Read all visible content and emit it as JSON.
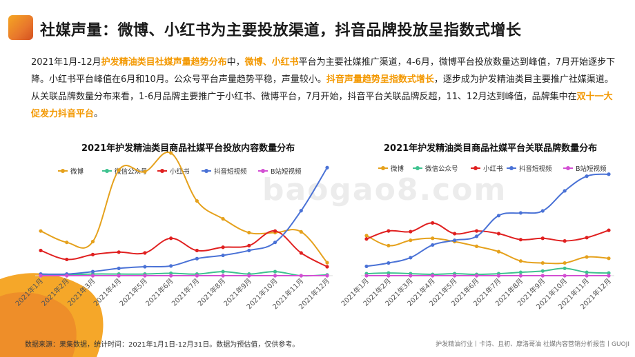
{
  "header": {
    "title": "社媒声量：微博、小红书为主要投放渠道，抖音品牌投放呈指数式增长"
  },
  "description": {
    "p1": "2021年1月-12月",
    "h1": "护发精油类目社媒声量趋势分布",
    "p2": "中，",
    "h2": "微博、小红书",
    "p3": "平台为主要社媒推广渠道，4-6月，微博平台投放数量达到峰值，7月开始逐步下降。小红书平台峰值在6月和10月。公众号平台声量趋势平稳，声量较小。",
    "h3": "抖音声量趋势呈指数式增长",
    "p4": "，逐步成为护发精油类目主要推广社媒渠道。从关联品牌数量分布来看，1-6月品牌主要推广于小红书、微博平台，7月开始，抖音平台关联品牌反超，11、12月达到峰值，品牌集中在",
    "h4": "双十一大促发力抖音平台",
    "p5": "。"
  },
  "watermark": "baogao8.com",
  "chart_data": [
    {
      "type": "line",
      "title": "2021年护发精油类目商品社媒平台投放内容数量分布",
      "categories": [
        "2021年1月",
        "2021年2月",
        "2021年3月",
        "2021年4月",
        "2021年5月",
        "2021年6月",
        "2021年7月",
        "2021年8月",
        "2021年9月",
        "2021年10月",
        "2021年11月",
        "2021年12月"
      ],
      "ylim": [
        0,
        140
      ],
      "series": [
        {
          "name": "微博",
          "color": "#e5a11c",
          "values": [
            55,
            41,
            42,
            130,
            128,
            151,
            92,
            70,
            53,
            53,
            54,
            16
          ]
        },
        {
          "name": "微信公众号",
          "color": "#3ec28f",
          "values": [
            1,
            1,
            2,
            2,
            2,
            3,
            2,
            5,
            2,
            5,
            0,
            1
          ]
        },
        {
          "name": "小红书",
          "color": "#e02020",
          "values": [
            31,
            20,
            26,
            29,
            28,
            46,
            31,
            35,
            37,
            55,
            28,
            11
          ]
        },
        {
          "name": "抖音短视频",
          "color": "#4a72d6",
          "values": [
            2,
            2,
            5,
            9,
            11,
            12,
            21,
            25,
            31,
            41,
            80,
            133
          ]
        },
        {
          "name": "B站短视频",
          "color": "#d34fd3",
          "values": [
            0,
            0,
            0,
            0,
            0,
            0,
            0,
            0,
            0,
            0,
            0,
            0
          ]
        }
      ]
    },
    {
      "type": "line",
      "title": "2021年护发精油类目商品社媒平台关联品牌数量分布",
      "categories": [
        "2021年1月",
        "2021年2月",
        "2021年3月",
        "2021年4月",
        "2021年5月",
        "2021年6月",
        "2021年7月",
        "2021年8月",
        "2021年9月",
        "2021年10月",
        "2021年11月",
        "2021年12月"
      ],
      "ylim": [
        0,
        160
      ],
      "series": [
        {
          "name": "微博",
          "color": "#e5a11c",
          "values": [
            60,
            45,
            53,
            56,
            51,
            44,
            36,
            22,
            19,
            19,
            28,
            26
          ]
        },
        {
          "name": "微信公众号",
          "color": "#3ec28f",
          "values": [
            3,
            4,
            3,
            2,
            3,
            2,
            3,
            5,
            7,
            11,
            5,
            4
          ]
        },
        {
          "name": "小红书",
          "color": "#e02020",
          "values": [
            55,
            67,
            66,
            79,
            63,
            67,
            63,
            54,
            56,
            52,
            57,
            68
          ]
        },
        {
          "name": "抖音短视频",
          "color": "#4a72d6",
          "values": [
            14,
            19,
            27,
            46,
            53,
            59,
            90,
            94,
            97,
            127,
            149,
            152
          ]
        },
        {
          "name": "B站短视频",
          "color": "#d34fd3",
          "values": [
            0,
            0,
            0,
            0,
            0,
            0,
            0,
            0,
            0,
            0,
            0,
            0
          ]
        }
      ]
    }
  ],
  "footer": {
    "note": "数据来源：果集数据，统计时间：2021年1月1日-12月31日。数据为预估值，仅供参考。",
    "right": "护发精油行业丨卡诗、且初、摩洛哥油 社媒内容营销分析报告丨GUOJI"
  }
}
